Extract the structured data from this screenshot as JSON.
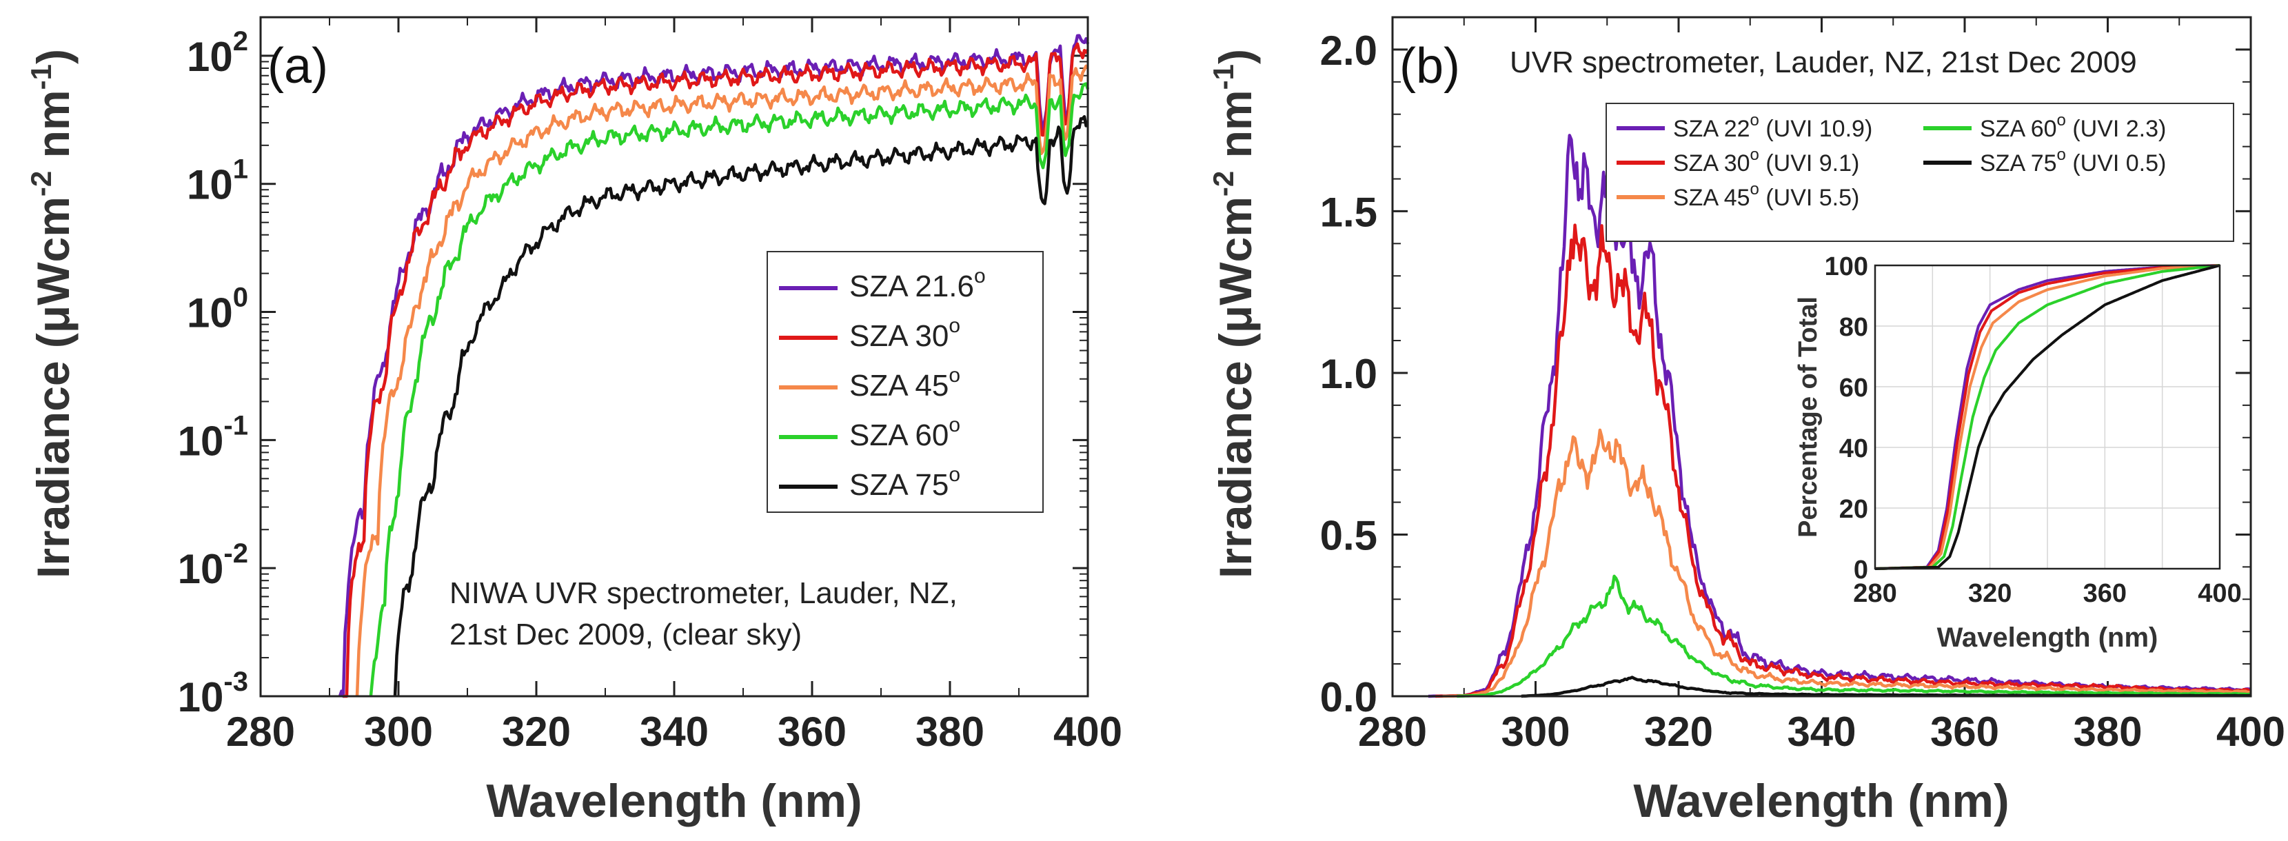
{
  "figure": {
    "description_panels": [
      "a",
      "b"
    ]
  },
  "colors": {
    "purple": "#6a1fb4",
    "red": "#e01818",
    "orange": "#f5884a",
    "green": "#2bd12b",
    "black": "#111111"
  },
  "chart_data": [
    {
      "type": "line",
      "panel_label": "(a)",
      "title": "",
      "xlabel": "Wavelength (nm)",
      "ylabel": "Irradiance (μWcm⁻² nm⁻¹)",
      "yscale": "log",
      "xlim": [
        280,
        400
      ],
      "ylim": [
        0.001,
        200
      ],
      "xticks": [
        280,
        300,
        320,
        340,
        360,
        380,
        400
      ],
      "xtick_labels": [
        "280",
        "300",
        "320",
        "340",
        "360",
        "380",
        "400"
      ],
      "yticks": [
        0.001,
        0.01,
        0.1,
        1,
        10,
        100
      ],
      "ytick_labels": [
        {
          "base": "10",
          "exp": "-3"
        },
        {
          "base": "10",
          "exp": "-2"
        },
        {
          "base": "10",
          "exp": "-1"
        },
        {
          "base": "10",
          "exp": "0"
        },
        {
          "base": "10",
          "exp": "1"
        },
        {
          "base": "10",
          "exp": "2"
        }
      ],
      "annotation": [
        "NIWA UVR spectrometer, Lauder, NZ,",
        "21st Dec 2009, (clear sky)"
      ],
      "legend_position": "center-right",
      "series": [
        {
          "name": "SZA 21.6",
          "sup": "o",
          "color": "purple",
          "start": 291.5,
          "x": [
            292,
            295,
            298,
            300,
            302,
            305,
            308,
            310,
            315,
            320,
            325,
            330,
            340,
            350,
            360,
            370,
            380,
            390,
            395,
            400
          ],
          "y": [
            0.001,
            0.03,
            0.4,
            1.5,
            3.5,
            8,
            16,
            24,
            35,
            48,
            58,
            64,
            70,
            75,
            80,
            85,
            90,
            95,
            100,
            135
          ]
        },
        {
          "name": "SZA 30",
          "sup": "o",
          "color": "red",
          "start": 292,
          "x": [
            292.5,
            295,
            298,
            300,
            302,
            305,
            308,
            310,
            315,
            320,
            325,
            330,
            340,
            350,
            360,
            370,
            380,
            390,
            395,
            400
          ],
          "y": [
            0.001,
            0.02,
            0.3,
            1.2,
            3,
            7,
            14,
            21,
            31,
            43,
            52,
            58,
            63,
            68,
            72,
            77,
            82,
            87,
            92,
            115
          ]
        },
        {
          "name": "SZA 45",
          "sup": "o",
          "color": "orange",
          "start": 294,
          "x": [
            294,
            297,
            300,
            302,
            305,
            308,
            310,
            315,
            320,
            325,
            330,
            340,
            350,
            360,
            370,
            380,
            390,
            395,
            400
          ],
          "y": [
            0.001,
            0.02,
            0.3,
            0.8,
            2.5,
            6,
            10,
            17,
            25,
            32,
            37,
            41,
            45,
            48,
            52,
            56,
            60,
            63,
            80
          ]
        },
        {
          "name": "SZA 60",
          "sup": "o",
          "color": "green",
          "start": 296,
          "x": [
            296,
            298,
            300,
            302,
            305,
            308,
            310,
            315,
            320,
            325,
            330,
            340,
            350,
            360,
            370,
            380,
            390,
            395,
            400
          ],
          "y": [
            0.001,
            0.005,
            0.04,
            0.2,
            0.9,
            2.5,
            4.5,
            9,
            14,
            19,
            23,
            26,
            29,
            32,
            35,
            38,
            42,
            44,
            55
          ]
        },
        {
          "name": "SZA 75",
          "sup": "o",
          "color": "black",
          "start": 299.5,
          "x": [
            299.5,
            302,
            305,
            308,
            310,
            315,
            320,
            325,
            330,
            340,
            350,
            360,
            370,
            380,
            390,
            395,
            400
          ],
          "y": [
            0.001,
            0.01,
            0.05,
            0.2,
            0.5,
            1.5,
            3.5,
            6,
            8,
            10,
            12,
            14,
            16,
            18,
            21,
            23,
            30
          ]
        }
      ]
    },
    {
      "type": "line",
      "panel_label": "(b)",
      "title": "UVR spectrometer, Lauder, NZ, 21st Dec 2009",
      "xlabel": "Wavelength (nm)",
      "ylabel": "Irradiance (μWcm⁻² nm⁻¹)",
      "yscale": "linear",
      "xlim": [
        280,
        400
      ],
      "ylim": [
        0,
        2.1
      ],
      "xticks": [
        280,
        300,
        320,
        340,
        360,
        380,
        400
      ],
      "xtick_labels": [
        "280",
        "300",
        "320",
        "340",
        "360",
        "380",
        "400"
      ],
      "yticks": [
        0,
        0.5,
        1,
        1.5,
        2
      ],
      "ytick_labels": [
        "0.0",
        "0.5",
        "1.0",
        "1.5",
        "2.0"
      ],
      "legend_position": "top-right",
      "series": [
        {
          "name": "SZA 22",
          "sup": "o",
          "extra": "(UVI 10.9)",
          "color": "purple",
          "x": [
            285,
            290,
            293,
            296,
            298,
            300,
            302,
            304,
            305,
            306,
            308,
            310,
            312,
            314,
            316,
            318,
            320,
            322,
            325,
            330,
            335,
            340,
            350,
            360,
            370,
            380,
            390,
            400
          ],
          "y": [
            0,
            0.002,
            0.02,
            0.15,
            0.35,
            0.6,
            0.95,
            1.35,
            1.8,
            1.6,
            1.5,
            1.55,
            1.45,
            1.3,
            1.35,
            1.05,
            0.75,
            0.45,
            0.25,
            0.12,
            0.09,
            0.07,
            0.06,
            0.05,
            0.04,
            0.03,
            0.025,
            0.02
          ]
        },
        {
          "name": "SZA 30",
          "sup": "o",
          "extra": "(UVI 9.1)",
          "color": "red",
          "x": [
            286,
            290,
            293,
            296,
            298,
            300,
            302,
            304,
            305,
            306,
            308,
            310,
            312,
            314,
            316,
            318,
            320,
            322,
            325,
            330,
            335,
            340,
            350,
            360,
            370,
            380,
            390,
            400
          ],
          "y": [
            0,
            0.002,
            0.015,
            0.12,
            0.3,
            0.5,
            0.8,
            1.15,
            1.5,
            1.35,
            1.3,
            1.35,
            1.25,
            1.15,
            1.15,
            0.9,
            0.65,
            0.4,
            0.22,
            0.1,
            0.08,
            0.06,
            0.05,
            0.04,
            0.035,
            0.03,
            0.02,
            0.018
          ]
        },
        {
          "name": "SZA 45",
          "sup": "o",
          "extra": "(UVI 5.5)",
          "color": "orange",
          "x": [
            287,
            291,
            294,
            297,
            299,
            301,
            303,
            305,
            306,
            308,
            310,
            312,
            314,
            316,
            318,
            320,
            322,
            325,
            330,
            335,
            340,
            350,
            360,
            370,
            380,
            390,
            400
          ],
          "y": [
            0,
            0.002,
            0.02,
            0.12,
            0.25,
            0.42,
            0.6,
            0.8,
            0.7,
            0.72,
            0.8,
            0.72,
            0.65,
            0.65,
            0.5,
            0.38,
            0.25,
            0.14,
            0.07,
            0.05,
            0.04,
            0.035,
            0.03,
            0.025,
            0.02,
            0.016,
            0.014
          ]
        },
        {
          "name": "SZA 60",
          "sup": "o",
          "extra": "(UVI 2.3)",
          "color": "green",
          "x": [
            289,
            293,
            296,
            299,
            302,
            305,
            307,
            309,
            311,
            313,
            315,
            317,
            320,
            323,
            326,
            330,
            335,
            340,
            350,
            360,
            370,
            380,
            390,
            400
          ],
          "y": [
            0,
            0.003,
            0.02,
            0.06,
            0.12,
            0.2,
            0.25,
            0.28,
            0.35,
            0.28,
            0.26,
            0.22,
            0.16,
            0.1,
            0.06,
            0.035,
            0.025,
            0.02,
            0.018,
            0.015,
            0.012,
            0.01,
            0.008,
            0.007
          ]
        },
        {
          "name": "SZA 75",
          "sup": "o",
          "extra": "(UVI 0.5)",
          "color": "black",
          "x": [
            298,
            302,
            305,
            308,
            311,
            313,
            315,
            318,
            320,
            323,
            326,
            330,
            335,
            340,
            350,
            360,
            380,
            400
          ],
          "y": [
            0,
            0.005,
            0.015,
            0.03,
            0.045,
            0.055,
            0.05,
            0.04,
            0.03,
            0.02,
            0.012,
            0.008,
            0.006,
            0.005,
            0.004,
            0.003,
            0.002,
            0.002
          ]
        }
      ]
    },
    {
      "type": "line",
      "panel_label": "inset",
      "title": "",
      "xlabel": "Wavelength (nm)",
      "ylabel": "Percentage of Total",
      "xlim": [
        280,
        400
      ],
      "ylim": [
        0,
        100
      ],
      "xticks": [
        280,
        320,
        360,
        400
      ],
      "xtick_labels": [
        "280",
        "320",
        "360",
        "400"
      ],
      "yticks": [
        0,
        20,
        40,
        60,
        80,
        100
      ],
      "ytick_labels": [
        "0",
        "20",
        "40",
        "60",
        "80",
        "100"
      ],
      "grid": true,
      "series": [
        {
          "color": "purple",
          "x": [
            280,
            298,
            302,
            305,
            308,
            312,
            316,
            320,
            330,
            340,
            360,
            380,
            400
          ],
          "y": [
            0,
            0.5,
            6,
            20,
            42,
            66,
            80,
            87,
            92,
            95,
            98,
            99.5,
            100
          ]
        },
        {
          "color": "red",
          "x": [
            280,
            298.5,
            302.5,
            305.5,
            308.5,
            312.5,
            316.5,
            320.5,
            330,
            340,
            360,
            380,
            400
          ],
          "y": [
            0,
            0.5,
            6,
            20,
            41,
            64,
            78,
            85,
            91,
            94,
            97.5,
            99.3,
            100
          ]
        },
        {
          "color": "orange",
          "x": [
            280,
            299,
            303,
            306,
            309,
            313,
            317,
            321,
            330,
            340,
            360,
            380,
            400
          ],
          "y": [
            0,
            0.5,
            5,
            18,
            38,
            60,
            73,
            81,
            88,
            92,
            96.5,
            99,
            100
          ]
        },
        {
          "color": "green",
          "x": [
            280,
            300,
            304,
            307,
            310,
            314,
            318,
            322,
            330,
            340,
            360,
            380,
            400
          ],
          "y": [
            0,
            0.5,
            4,
            14,
            30,
            50,
            63,
            72,
            81,
            87,
            94,
            98,
            100
          ]
        },
        {
          "color": "black",
          "x": [
            280,
            302,
            306,
            309,
            312,
            316,
            320,
            325,
            335,
            345,
            360,
            380,
            400
          ],
          "y": [
            0,
            0.5,
            4,
            12,
            24,
            40,
            50,
            58,
            69,
            77,
            87,
            95,
            100
          ]
        }
      ]
    }
  ]
}
